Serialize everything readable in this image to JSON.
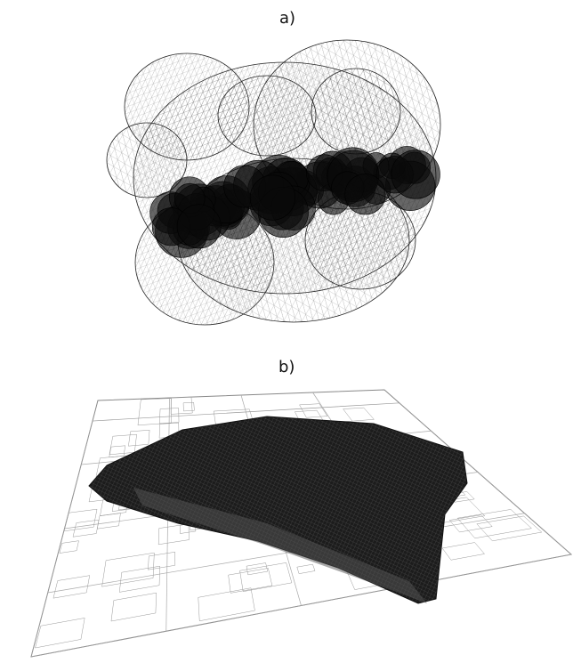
{
  "panels": [
    {
      "id": "a",
      "label": "a)"
    },
    {
      "id": "b",
      "label": "b)"
    }
  ],
  "colors": {
    "ink": "#000000",
    "background": "#ffffff",
    "wire": "#333333"
  }
}
